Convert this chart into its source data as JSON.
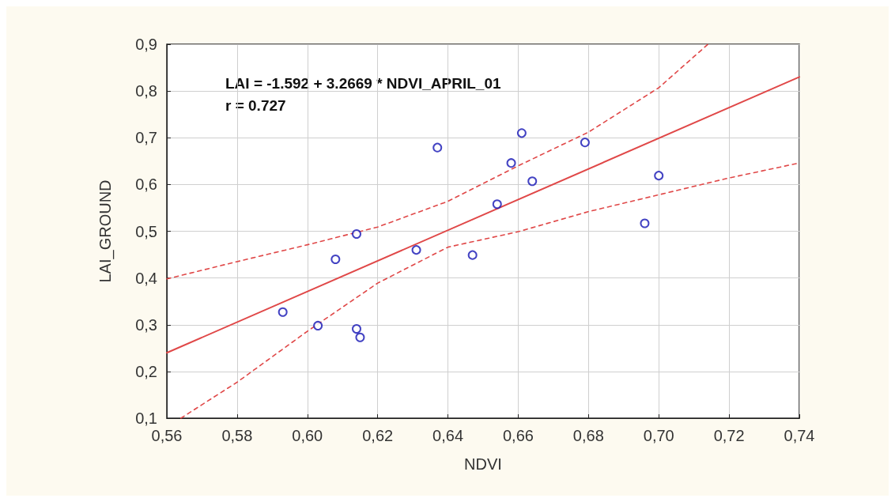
{
  "chart_data": {
    "type": "scatter",
    "xlabel": "NDVI",
    "ylabel": "LAI_GROUND",
    "annotations": [
      "LAI = -1.592 + 3.2669 * NDVI_APRIL_01",
      "r = 0.727"
    ],
    "xlim": [
      0.56,
      0.74
    ],
    "xticks": [
      {
        "value": 0.56,
        "label": "0,56"
      },
      {
        "value": 0.58,
        "label": "0,58"
      },
      {
        "value": 0.6,
        "label": "0,60"
      },
      {
        "value": 0.62,
        "label": "0,62"
      },
      {
        "value": 0.64,
        "label": "0,64"
      },
      {
        "value": 0.66,
        "label": "0,66"
      },
      {
        "value": 0.68,
        "label": "0,68"
      },
      {
        "value": 0.7,
        "label": "0,70"
      },
      {
        "value": 0.72,
        "label": "0,72"
      },
      {
        "value": 0.74,
        "label": "0,74"
      }
    ],
    "ylim": [
      0.1,
      0.9
    ],
    "yticks": [
      {
        "value": 0.1,
        "label": "0,1"
      },
      {
        "value": 0.2,
        "label": "0,2"
      },
      {
        "value": 0.3,
        "label": "0,3"
      },
      {
        "value": 0.4,
        "label": "0,4"
      },
      {
        "value": 0.5,
        "label": "0,5"
      },
      {
        "value": 0.6,
        "label": "0,6"
      },
      {
        "value": 0.7,
        "label": "0,7"
      },
      {
        "value": 0.8,
        "label": "0,8"
      },
      {
        "value": 0.9,
        "label": "0,9"
      }
    ],
    "grid": true,
    "series": [
      {
        "marker": "circle",
        "color": "#1414b4",
        "x": [
          0.593,
          0.603,
          0.608,
          0.614,
          0.615,
          0.614,
          0.631,
          0.637,
          0.647,
          0.654,
          0.658,
          0.661,
          0.664,
          0.679,
          0.696,
          0.7
        ],
        "values": [
          0.327,
          0.298,
          0.44,
          0.291,
          0.273,
          0.494,
          0.46,
          0.679,
          0.449,
          0.558,
          0.646,
          0.71,
          0.607,
          0.69,
          0.517,
          0.619
        ]
      },
      {
        "type": "line",
        "marker": "none",
        "color": "#e04848",
        "line_style": "solid",
        "x": [
          0.56,
          0.74
        ],
        "values": [
          0.24,
          0.83
        ]
      },
      {
        "type": "line",
        "marker": "none",
        "color": "#e04848",
        "line_style": "dashed",
        "x": [
          0.56,
          0.58,
          0.6,
          0.62,
          0.64,
          0.66,
          0.68,
          0.7,
          0.714
        ],
        "values": [
          0.398,
          0.435,
          0.471,
          0.509,
          0.564,
          0.64,
          0.712,
          0.807,
          0.9
        ]
      },
      {
        "type": "line",
        "marker": "none",
        "color": "#e04848",
        "line_style": "dashed",
        "x": [
          0.564,
          0.58,
          0.6,
          0.62,
          0.64,
          0.66,
          0.68,
          0.7,
          0.72,
          0.74
        ],
        "values": [
          0.1,
          0.177,
          0.286,
          0.389,
          0.466,
          0.499,
          0.542,
          0.578,
          0.614,
          0.646
        ]
      }
    ]
  }
}
